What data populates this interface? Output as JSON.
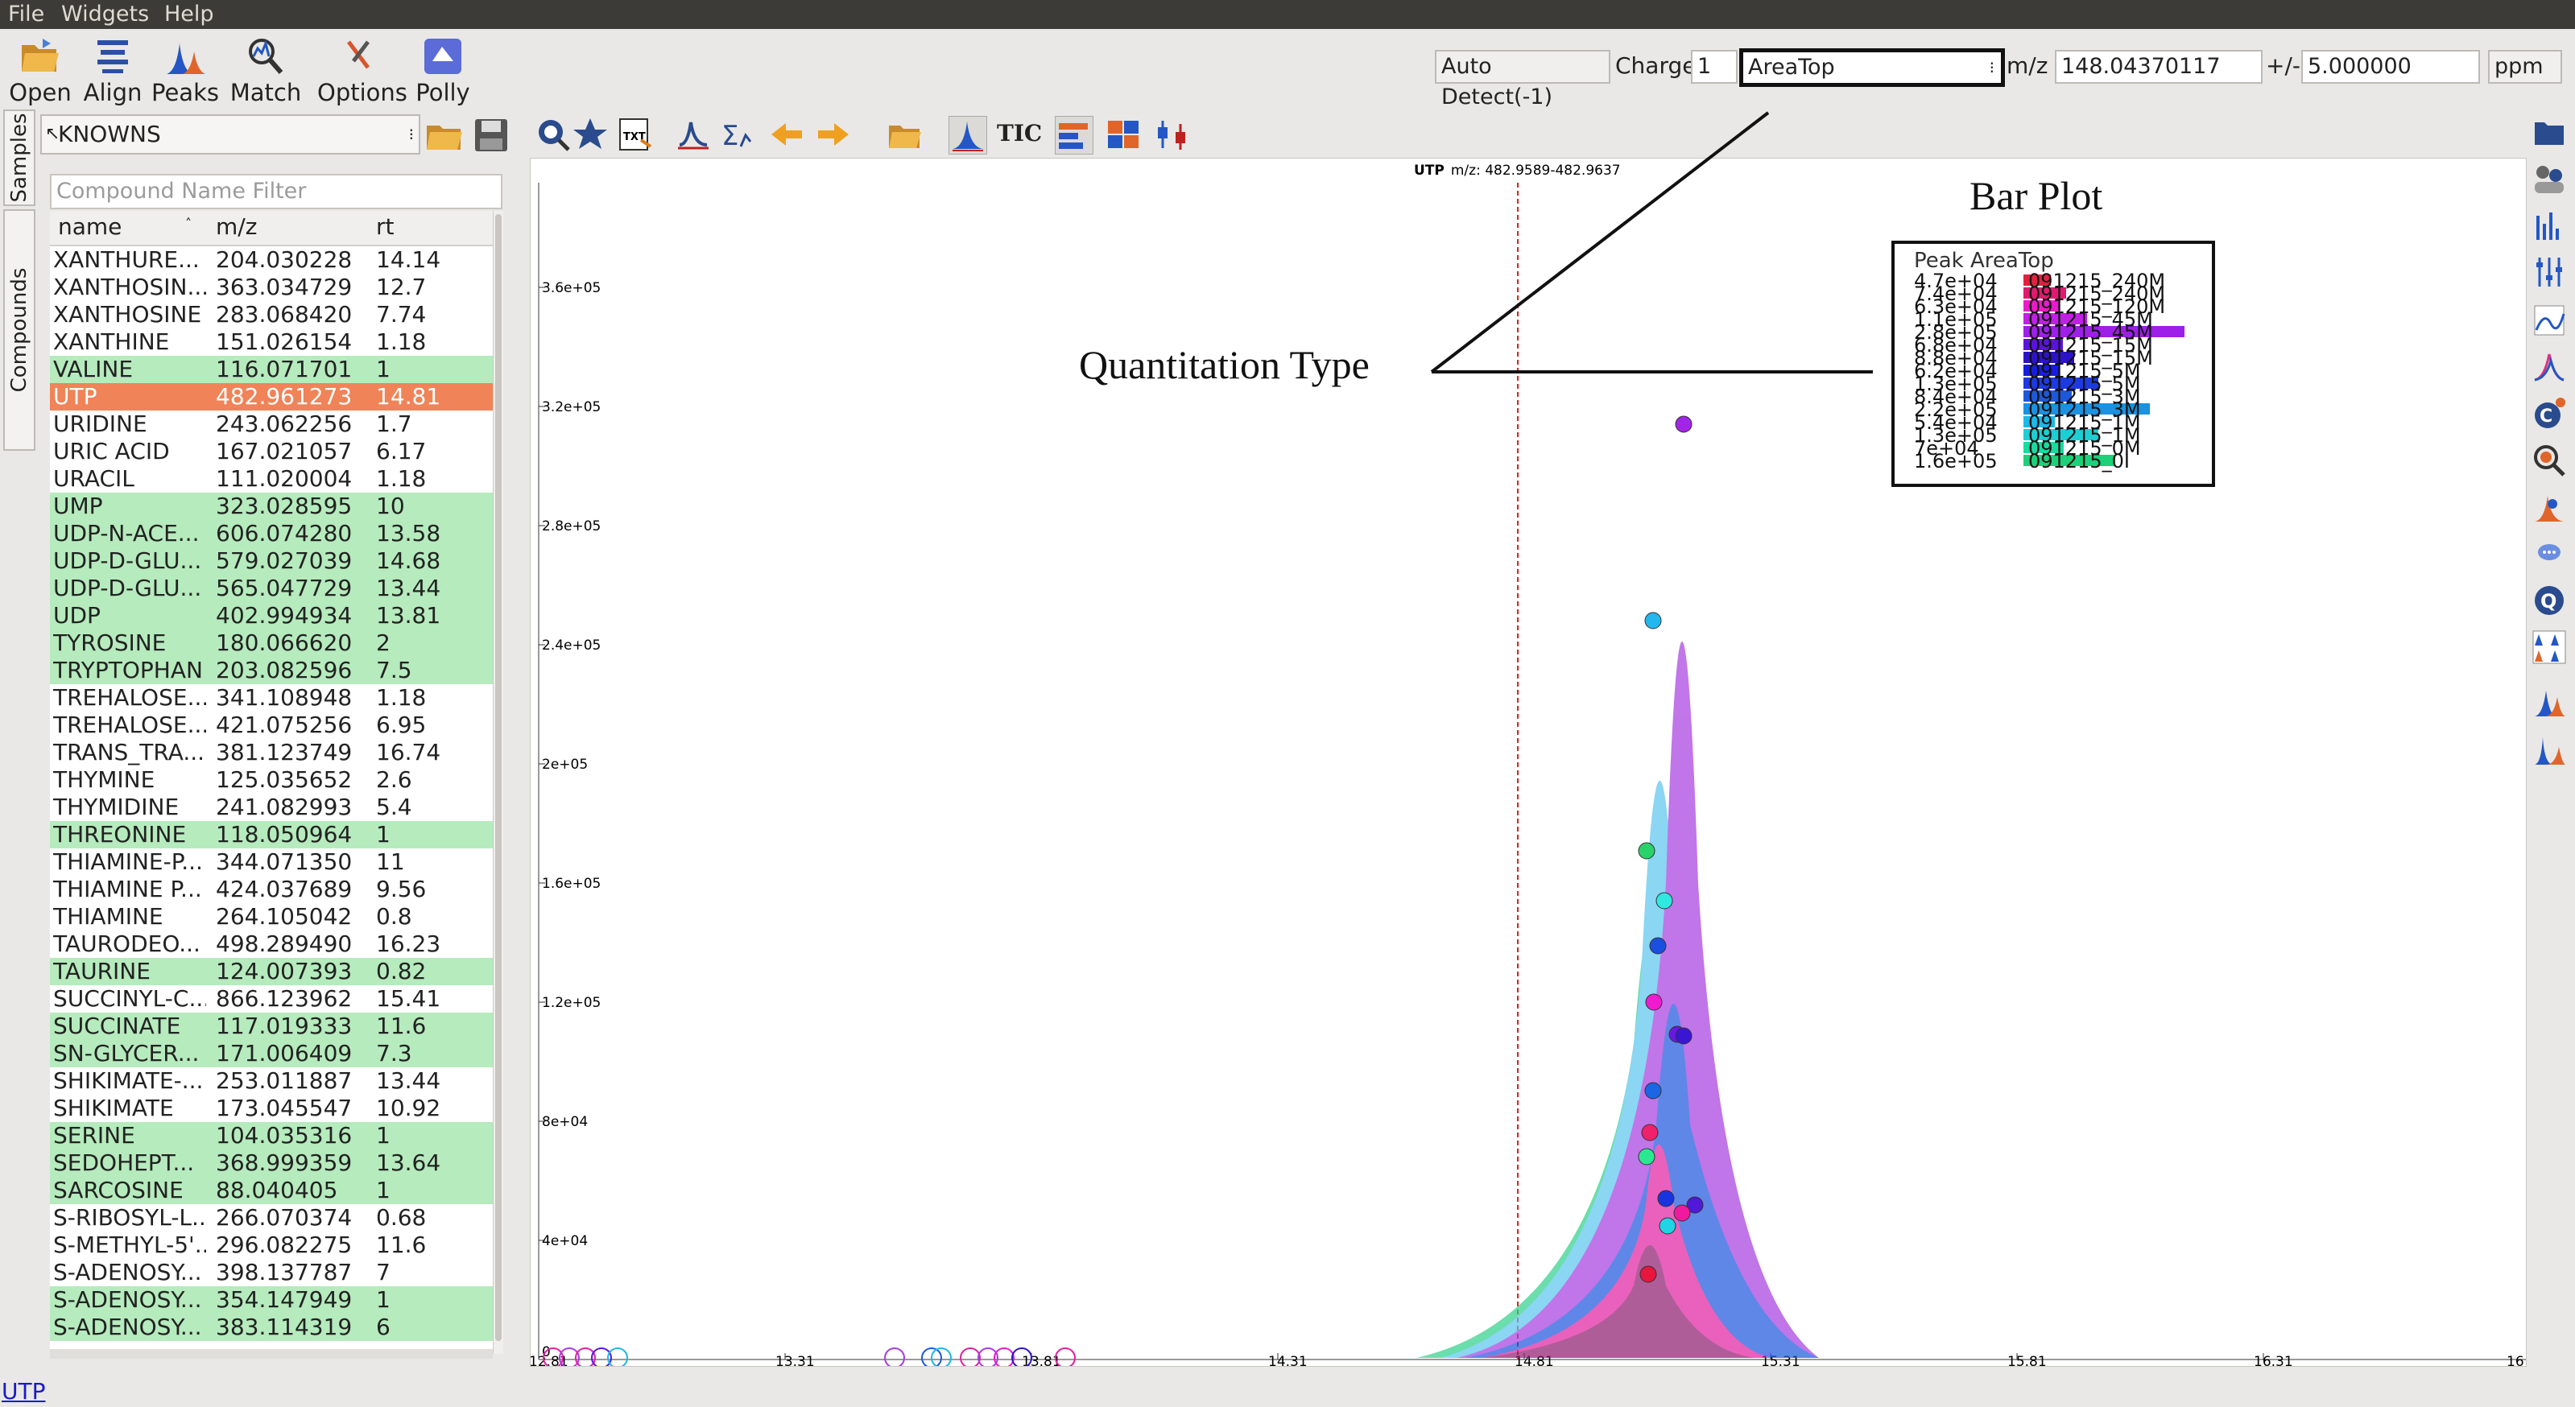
{
  "menu": [
    "File",
    "Widgets",
    "Help"
  ],
  "toolbar": {
    "open": "Open",
    "align": "Align",
    "peaks": "Peaks",
    "match": "Match",
    "options": "Options",
    "polly": "Polly"
  },
  "ion_controls": {
    "auto_detect": "Auto Detect(-1)",
    "charge_label": "Charge",
    "charge_value": "1",
    "quant_type": "AreaTop",
    "mz_label": "m/z",
    "mz_value": "148.04370117",
    "tol_label": "+/-",
    "tol_value": "5.000000",
    "unit": "ppm"
  },
  "sidetabs": [
    "Samples",
    "Compounds"
  ],
  "library": "KNOWNS",
  "filter_placeholder": "Compound Name Filter",
  "table": {
    "headers": [
      "name",
      "m/z",
      "rt"
    ],
    "rows": [
      {
        "name": "XANTHURE...",
        "mz": "204.030228",
        "rt": "14.14",
        "s": ""
      },
      {
        "name": "XANTHOSIN...",
        "mz": "363.034729",
        "rt": "12.7",
        "s": ""
      },
      {
        "name": "XANTHOSINE",
        "mz": "283.068420",
        "rt": "7.74",
        "s": ""
      },
      {
        "name": "XANTHINE",
        "mz": "151.026154",
        "rt": "1.18",
        "s": ""
      },
      {
        "name": "VALINE",
        "mz": "116.071701",
        "rt": "1",
        "s": "g"
      },
      {
        "name": "UTP",
        "mz": "482.961273",
        "rt": "14.81",
        "s": "o"
      },
      {
        "name": "URIDINE",
        "mz": "243.062256",
        "rt": "1.7",
        "s": ""
      },
      {
        "name": "URIC ACID",
        "mz": "167.021057",
        "rt": "6.17",
        "s": ""
      },
      {
        "name": "URACIL",
        "mz": "111.020004",
        "rt": "1.18",
        "s": ""
      },
      {
        "name": "UMP",
        "mz": "323.028595",
        "rt": "10",
        "s": "g"
      },
      {
        "name": "UDP-N-ACE...",
        "mz": "606.074280",
        "rt": "13.58",
        "s": "g"
      },
      {
        "name": "UDP-D-GLU...",
        "mz": "579.027039",
        "rt": "14.68",
        "s": "g"
      },
      {
        "name": "UDP-D-GLU...",
        "mz": "565.047729",
        "rt": "13.44",
        "s": "g"
      },
      {
        "name": "UDP",
        "mz": "402.994934",
        "rt": "13.81",
        "s": "g"
      },
      {
        "name": "TYROSINE",
        "mz": "180.066620",
        "rt": "2",
        "s": "g"
      },
      {
        "name": "TRYPTOPHAN",
        "mz": "203.082596",
        "rt": "7.5",
        "s": "g"
      },
      {
        "name": "TREHALOSE...",
        "mz": "341.108948",
        "rt": "1.18",
        "s": ""
      },
      {
        "name": "TREHALOSE...",
        "mz": "421.075256",
        "rt": "6.95",
        "s": ""
      },
      {
        "name": "TRANS_TRA...",
        "mz": "381.123749",
        "rt": "16.74",
        "s": ""
      },
      {
        "name": "THYMINE",
        "mz": "125.035652",
        "rt": "2.6",
        "s": ""
      },
      {
        "name": "THYMIDINE",
        "mz": "241.082993",
        "rt": "5.4",
        "s": ""
      },
      {
        "name": "THREONINE",
        "mz": "118.050964",
        "rt": "1",
        "s": "g"
      },
      {
        "name": "THIAMINE-P...",
        "mz": "344.071350",
        "rt": "11",
        "s": ""
      },
      {
        "name": "THIAMINE P...",
        "mz": "424.037689",
        "rt": "9.56",
        "s": ""
      },
      {
        "name": "THIAMINE",
        "mz": "264.105042",
        "rt": "0.8",
        "s": ""
      },
      {
        "name": "TAURODEO...",
        "mz": "498.289490",
        "rt": "16.23",
        "s": ""
      },
      {
        "name": "TAURINE",
        "mz": "124.007393",
        "rt": "0.82",
        "s": "g"
      },
      {
        "name": "SUCCINYL-C...",
        "mz": "866.123962",
        "rt": "15.41",
        "s": ""
      },
      {
        "name": "SUCCINATE",
        "mz": "117.019333",
        "rt": "11.6",
        "s": "g"
      },
      {
        "name": "SN-GLYCER...",
        "mz": "171.006409",
        "rt": "7.3",
        "s": "g"
      },
      {
        "name": "SHIKIMATE-...",
        "mz": "253.011887",
        "rt": "13.44",
        "s": ""
      },
      {
        "name": "SHIKIMATE",
        "mz": "173.045547",
        "rt": "10.92",
        "s": ""
      },
      {
        "name": "SERINE",
        "mz": "104.035316",
        "rt": "1",
        "s": "g"
      },
      {
        "name": "SEDOHEPT...",
        "mz": "368.999359",
        "rt": "13.64",
        "s": "g"
      },
      {
        "name": "SARCOSINE",
        "mz": "88.040405",
        "rt": "1",
        "s": "g"
      },
      {
        "name": "S-RIBOSYL-L...",
        "mz": "266.070374",
        "rt": "0.68",
        "s": ""
      },
      {
        "name": "S-METHYL-5'...",
        "mz": "296.082275",
        "rt": "11.6",
        "s": ""
      },
      {
        "name": "S-ADENOSY...",
        "mz": "398.137787",
        "rt": "7",
        "s": ""
      },
      {
        "name": "S-ADENOSY...",
        "mz": "354.147949",
        "rt": "1",
        "s": "g"
      },
      {
        "name": "S-ADENOSY...",
        "mz": "383.114319",
        "rt": "6",
        "s": "g"
      }
    ]
  },
  "plot_toolbar": {
    "tic_label": "TIC"
  },
  "plot": {
    "title_bold": "UTP",
    "title_rest": "m/z: 482.9589-482.9637",
    "y_ticks": [
      "4e+04",
      "8e+04",
      "1.2e+05",
      "1.6e+05",
      "2e+05",
      "2.4e+05",
      "2.8e+05",
      "3.2e+05",
      "3.6e+05"
    ],
    "x_ticks": [
      "12.81",
      "13.31",
      "13.81",
      "14.31",
      "14.81",
      "15.31",
      "15.81",
      "16.31"
    ],
    "zero_label": "0",
    "x_end_label": "16",
    "bar_plot": {
      "title": "Peak AreaTop",
      "values": [
        "4.7e+04",
        "7.4e+04",
        "6.3e+04",
        "1.1e+05",
        "2.8e+05",
        "6.8e+04",
        "8.8e+04",
        "6.2e+04",
        "1.3e+05",
        "8.4e+04",
        "2.2e+05",
        "5.4e+04",
        "1.3e+05",
        "7e+04",
        "1.6e+05"
      ],
      "samples": [
        "091215_240M",
        "091215_240M",
        "091215_120M",
        "091215_45M",
        "091215_45M",
        "091215_15M",
        "091215_15M",
        "091215_5M",
        "091215_5M",
        "091215_3M",
        "091215_3M",
        "091215_1M",
        "091215_1M",
        "091215_0M",
        "091215_0I"
      ],
      "colors": [
        "#e0213f",
        "#e01a6e",
        "#e91acb",
        "#c21fe6",
        "#9d1fe8",
        "#5a12e3",
        "#2d12c9",
        "#161ce0",
        "#1d39e0",
        "#1d58db",
        "#1b91e0",
        "#1cb8e6",
        "#1ccfd4",
        "#1cd9a0",
        "#1cd17a"
      ]
    }
  },
  "annotations": {
    "bar_plot": "Bar Plot",
    "quantitation_type": "Quantitation Type"
  },
  "status": "UTP"
}
